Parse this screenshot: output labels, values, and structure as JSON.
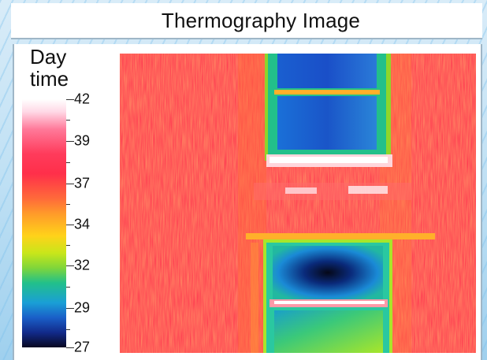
{
  "header": {
    "title": "Thermography Image"
  },
  "legend": {
    "label": "Day time",
    "ticks": [
      "42",
      "39",
      "37",
      "34",
      "32",
      "29",
      "27"
    ]
  },
  "colors": {
    "hot": "#ff3a4c",
    "warm": "#ff9a2a",
    "mid": "#c8e61a",
    "cool": "#1a9fd6",
    "cold": "#080822"
  }
}
